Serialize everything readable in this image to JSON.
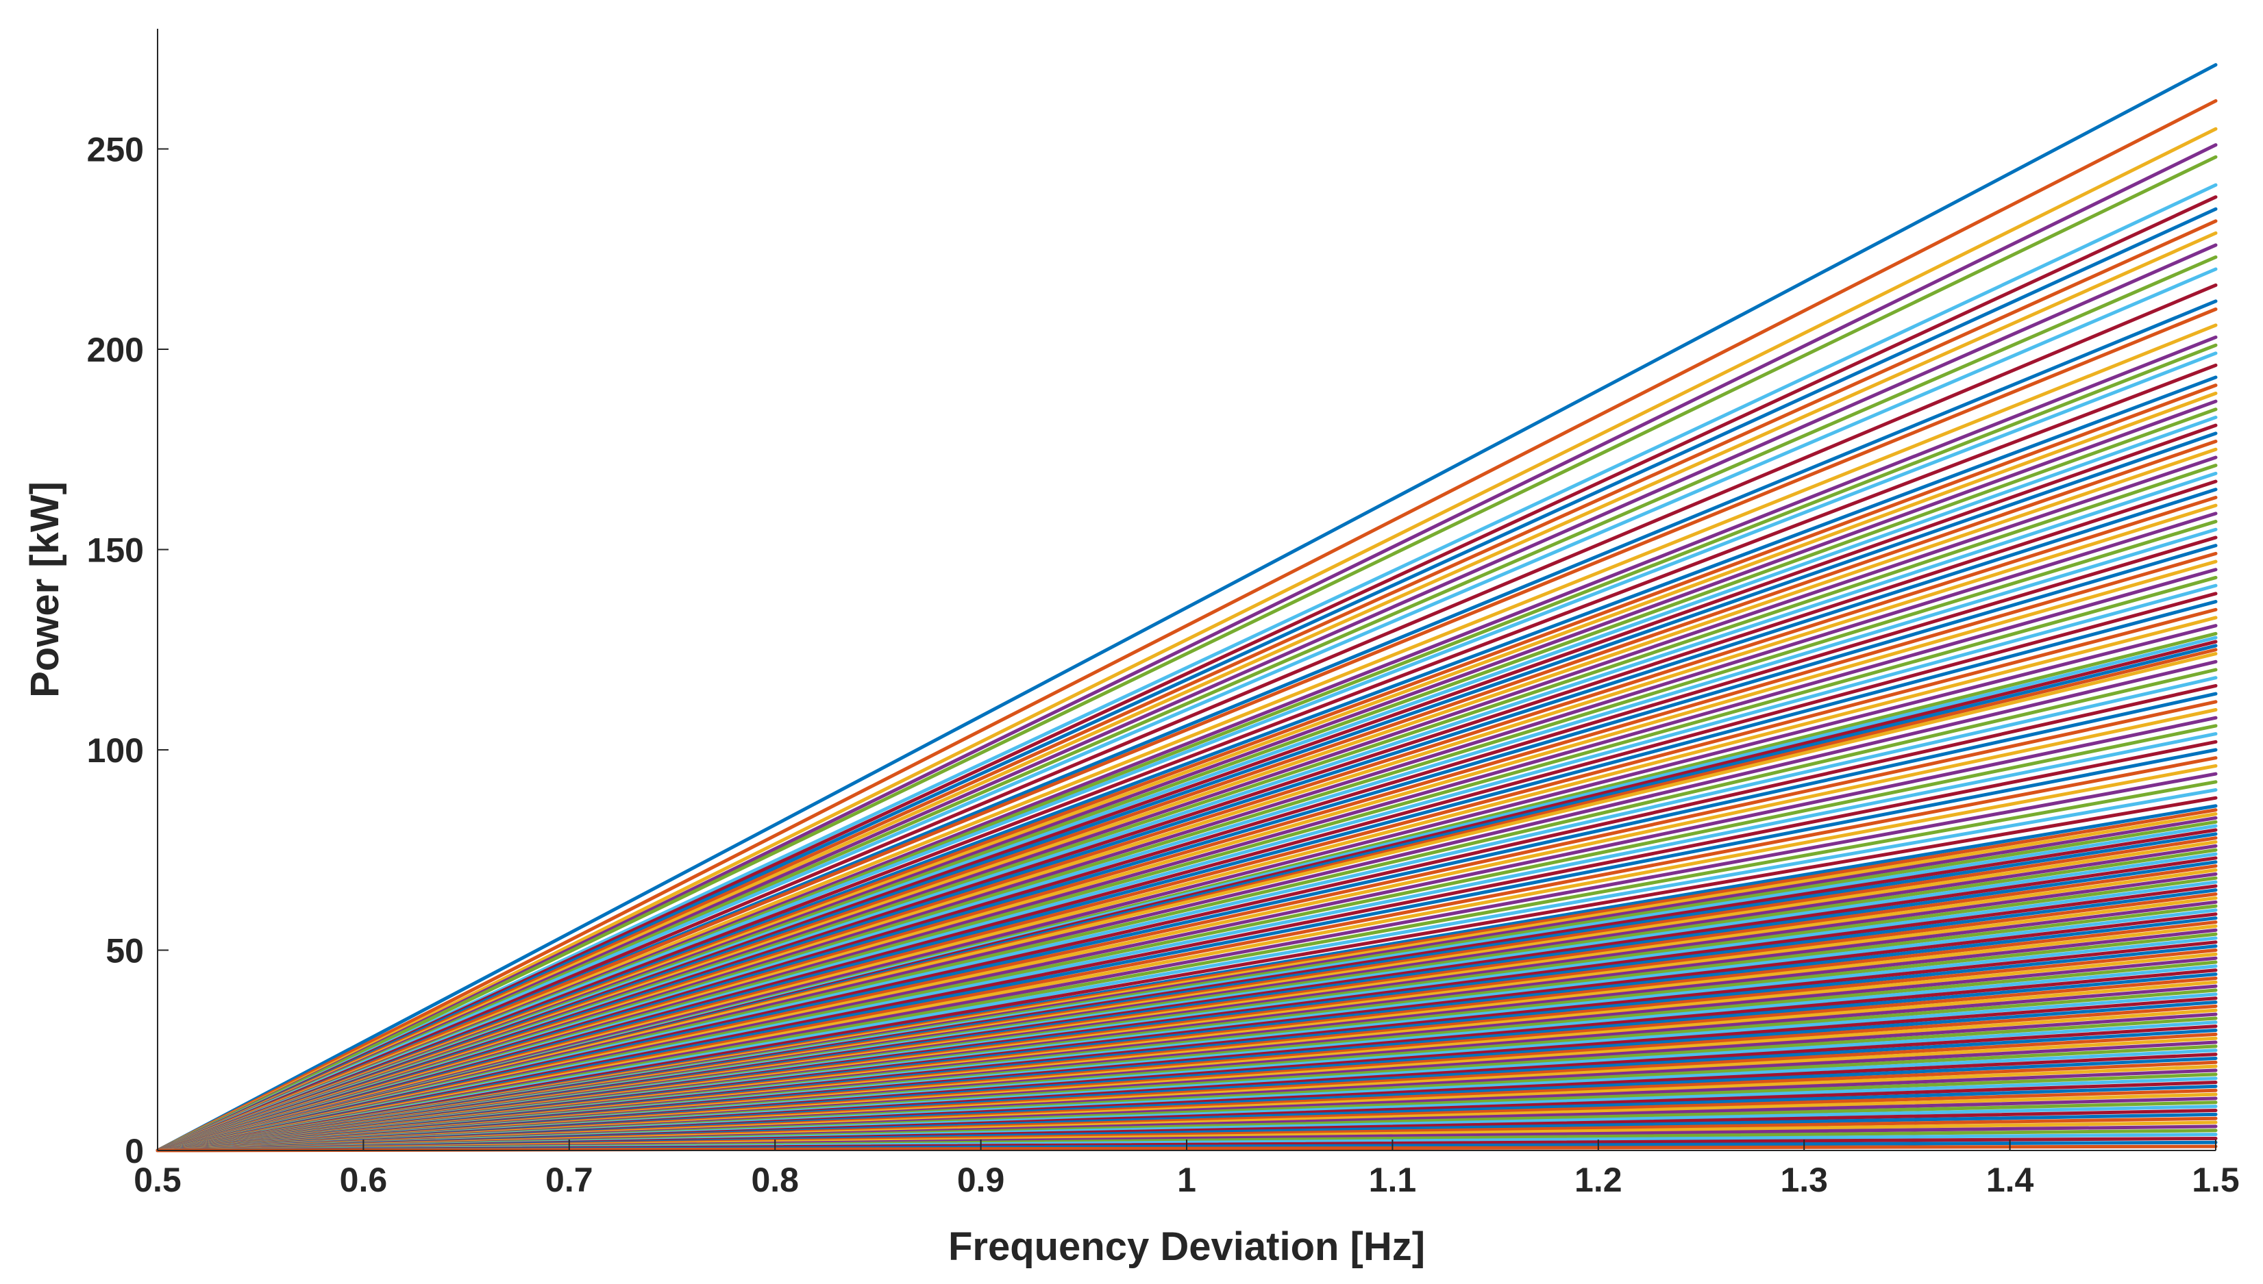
{
  "chart_data": {
    "type": "line",
    "title": "",
    "xlabel": "Frequency Deviation [Hz]",
    "ylabel": "Power [kW]",
    "xlim": [
      0.5,
      1.5
    ],
    "ylim": [
      0,
      280
    ],
    "xticks": [
      0.5,
      0.6,
      0.7,
      0.8,
      0.9,
      1,
      1.1,
      1.2,
      1.3,
      1.4,
      1.5
    ],
    "xtick_labels": [
      "0.5",
      "0.6",
      "0.7",
      "0.8",
      "0.9",
      "1",
      "1.1",
      "1.2",
      "1.3",
      "1.4",
      "1.5"
    ],
    "yticks": [
      0,
      50,
      100,
      150,
      200,
      250
    ],
    "ytick_labels": [
      "0",
      "50",
      "100",
      "150",
      "200",
      "250"
    ],
    "grid": false,
    "legend": "none",
    "series_description": "Several hundred linear series, each starting at 0 kW at 0.5 Hz and rising to its end value at 1.5 Hz",
    "series_x": [
      0.5,
      1.5
    ],
    "series_end_values": [
      271,
      262,
      255,
      251,
      248,
      241,
      238,
      235,
      232,
      229,
      226,
      223,
      220,
      216,
      212,
      210,
      206,
      203,
      201,
      199,
      196,
      193,
      191,
      189,
      187,
      185,
      183,
      181,
      179,
      177,
      175,
      173,
      171,
      169,
      167,
      165,
      163,
      161,
      159,
      157,
      155,
      153,
      151,
      149,
      147,
      145,
      143,
      141,
      139,
      137,
      135,
      133,
      131,
      129,
      128,
      127,
      126,
      125,
      124,
      122,
      120,
      118,
      116,
      114,
      112,
      110,
      108,
      106,
      104,
      102,
      100,
      98,
      96,
      94,
      92,
      90,
      88,
      86,
      85,
      84,
      83,
      82,
      81,
      80,
      79,
      78,
      77,
      76,
      75,
      74,
      73,
      72,
      71,
      70,
      69,
      68,
      67,
      66,
      65,
      64,
      63,
      62,
      61,
      60,
      59,
      58,
      57,
      56,
      55,
      54,
      53,
      52,
      51,
      50,
      49,
      48,
      47,
      46,
      45,
      44,
      43,
      42,
      41,
      40,
      39,
      38,
      37,
      36,
      35,
      34,
      33,
      32,
      31,
      30,
      29,
      28,
      27,
      26,
      25,
      24,
      23,
      22,
      21,
      20,
      19,
      18,
      17,
      16,
      15,
      14,
      13,
      12,
      11,
      10,
      9,
      8,
      7,
      6,
      5,
      4,
      3,
      2,
      1
    ],
    "color_cycle": [
      "#0072BD",
      "#D95319",
      "#EDB120",
      "#7E2F8E",
      "#77AC30",
      "#4DBEEE",
      "#A2142F"
    ]
  }
}
